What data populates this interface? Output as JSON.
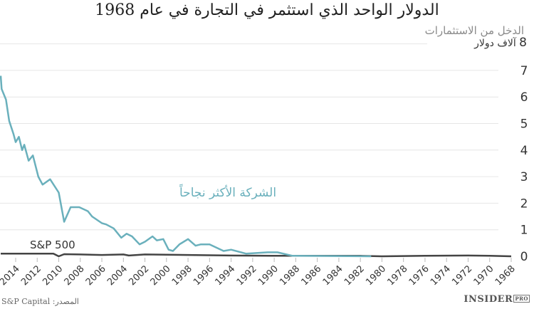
{
  "header": {
    "title": "الدولار الواحد الذي استثمر في التجارة في عام 1968"
  },
  "axis": {
    "y_title": "الدخل من الاستثمارات",
    "y_unit_number": "8",
    "y_unit_label": "آلاف دولار"
  },
  "series_labels": {
    "top_company": "الشركة الأكثر نجاحاً",
    "sp500": "S&P 500"
  },
  "colors": {
    "top_company": "#6ab0bc",
    "sp500": "#444444",
    "grid": "#e6e6e6"
  },
  "footer": {
    "source": "S&P Capital :المصدر",
    "brand": "INSIDER",
    "brand_badge": "PRO"
  },
  "chart_data": {
    "type": "line",
    "title": "الدولار الواحد الذي استثمر في التجارة في عام 1968",
    "xlabel": "",
    "ylabel": "الدخل من الاستثمارات (آلاف دولار)",
    "ylim": [
      0,
      8
    ],
    "yticks": [
      0,
      1,
      2,
      3,
      4,
      5,
      6,
      7,
      8
    ],
    "xticks": [
      "2014",
      "2012",
      "2010",
      "2008",
      "2006",
      "2004",
      "2002",
      "2000",
      "1998",
      "1996",
      "1994",
      "1992",
      "1990",
      "1988",
      "1986",
      "1984",
      "1982",
      "1980",
      "1978",
      "1976",
      "1974",
      "1972",
      "1970",
      "1968"
    ],
    "x_direction": "reversed (newest on left)",
    "grid": true,
    "legend": "inline labels",
    "series": [
      {
        "name": "الشركة الأكثر نجاحاً",
        "color": "#6ab0bc",
        "x": [
          2015.4,
          2015.3,
          2014.9,
          2014.6,
          2014.2,
          2014.0,
          2013.7,
          2013.4,
          2013.2,
          2012.8,
          2012.4,
          2011.9,
          2011.5,
          2010.8,
          2010.0,
          2009.5,
          2008.9,
          2008.1,
          2007.3,
          2006.9,
          2006.0,
          2005.6,
          2004.9,
          2004.2,
          2003.7,
          2003.2,
          2002.5,
          2002.0,
          2001.3,
          2000.9,
          2000.3,
          1999.8,
          1999.4,
          1998.8,
          1998.0,
          1997.3,
          1996.8,
          1996.0,
          1994.7,
          1994.0,
          1992.6,
          1990.6,
          1989.7,
          1988.3,
          1981.0
        ],
        "values": [
          6.8,
          6.3,
          5.9,
          5.1,
          4.6,
          4.3,
          4.5,
          4.0,
          4.2,
          3.6,
          3.8,
          3.0,
          2.7,
          2.9,
          2.4,
          1.3,
          1.85,
          1.85,
          1.7,
          1.5,
          1.25,
          1.2,
          1.05,
          0.7,
          0.85,
          0.75,
          0.45,
          0.55,
          0.75,
          0.6,
          0.65,
          0.25,
          0.2,
          0.45,
          0.65,
          0.4,
          0.45,
          0.45,
          0.2,
          0.25,
          0.1,
          0.15,
          0.15,
          0.02,
          0.0
        ]
      },
      {
        "name": "S&P 500",
        "color": "#444444",
        "x": [
          2015.4,
          2010.5,
          2010.0,
          2009.5,
          2008.0,
          2006.0,
          2004.0,
          2003.5,
          2002.0,
          2000.0,
          1998.0,
          1996.0,
          1994.0,
          1990.0,
          1986.0,
          1982.0,
          1980.0,
          1976.0,
          1972.0,
          1970.0,
          1968.0
        ],
        "values": [
          0.1,
          0.1,
          0.0,
          0.08,
          0.07,
          0.05,
          0.07,
          0.03,
          0.07,
          0.06,
          0.05,
          0.04,
          0.03,
          0.02,
          0.02,
          0.02,
          0.0,
          0.02,
          0.03,
          0.02,
          0.0
        ]
      }
    ]
  }
}
